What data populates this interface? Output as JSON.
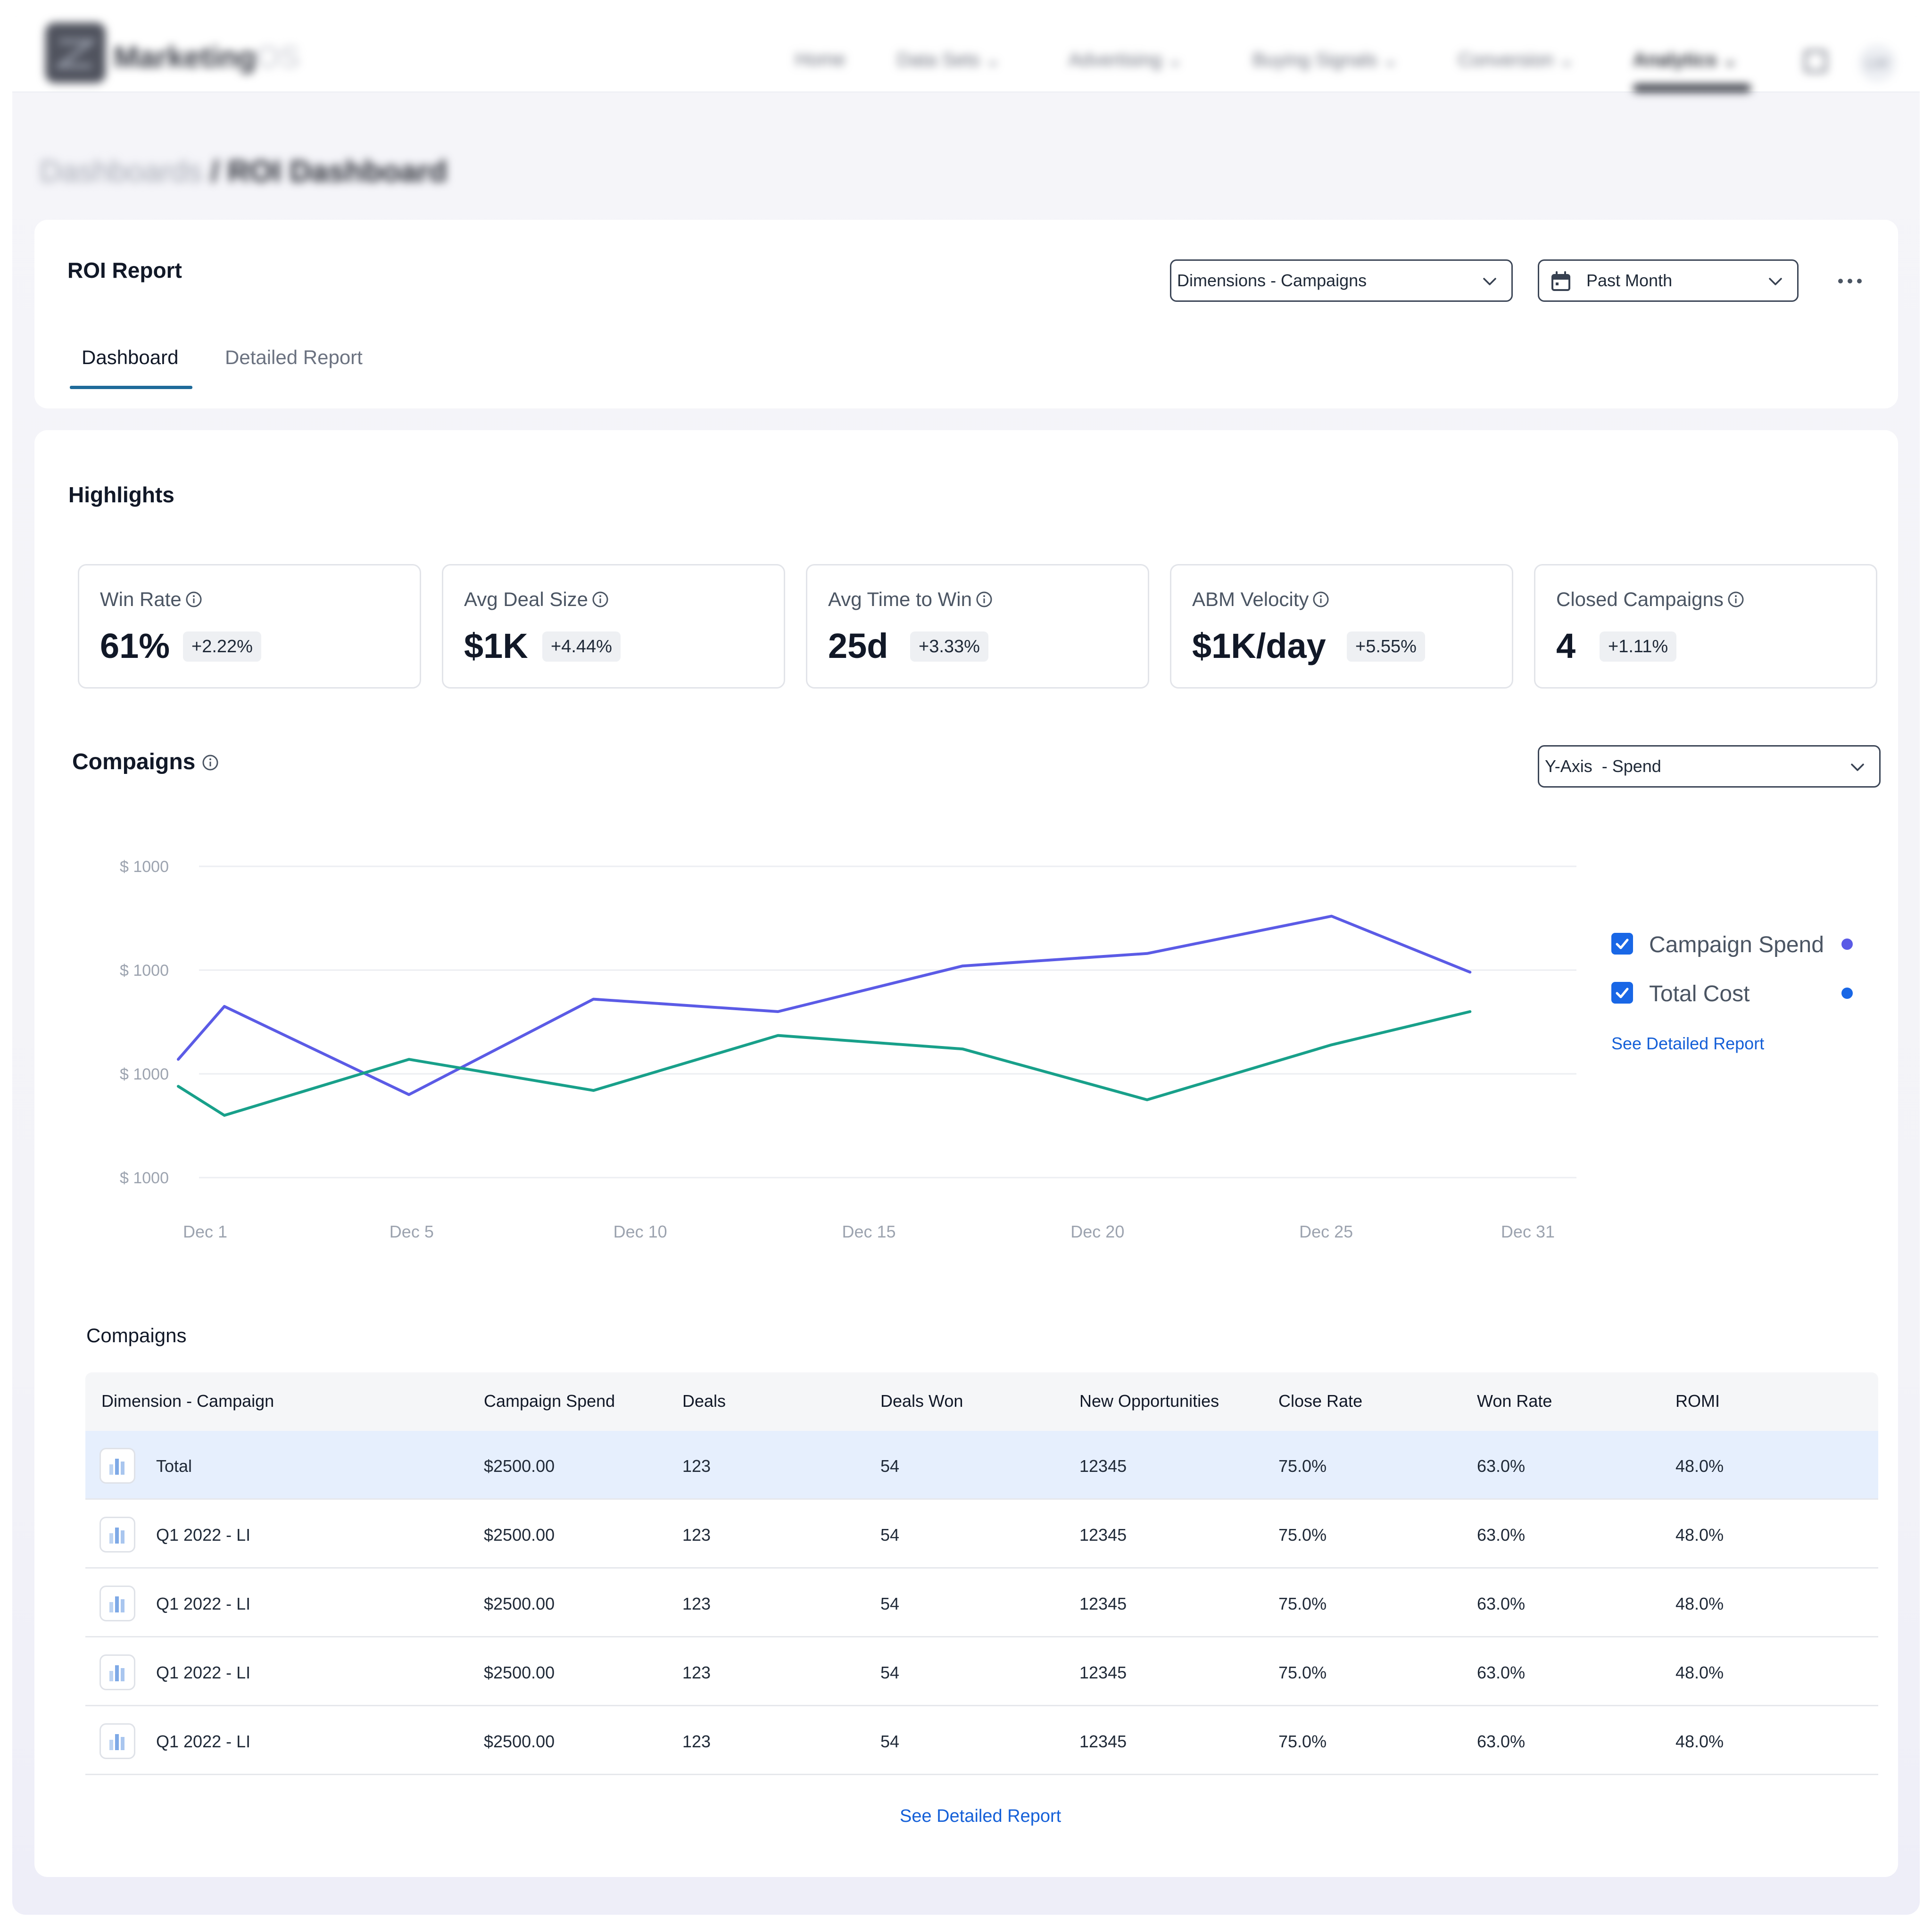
{
  "app": {
    "logo_text": "Marketing",
    "logo_suffix": "OS",
    "avatar_initials": "LW"
  },
  "nav": {
    "items": [
      {
        "label": "Home"
      },
      {
        "label": "Data Sets"
      },
      {
        "label": "Advertising"
      },
      {
        "label": "Buying Signals"
      },
      {
        "label": "Conversion"
      },
      {
        "label": "Analytics"
      }
    ],
    "active": "Analytics"
  },
  "breadcrumb": {
    "parent": "Dashboards",
    "separator": " / ",
    "current": "ROI Dashboard"
  },
  "report": {
    "title": "ROI Report",
    "dimension_select": "Dimensions - Campaigns",
    "date_select": "Past Month",
    "tabs": [
      {
        "label": "Dashboard",
        "active": true
      },
      {
        "label": "Detailed Report",
        "active": false
      }
    ]
  },
  "highlights": {
    "title": "Highlights",
    "kpis": [
      {
        "label": "Win Rate",
        "value": "61%",
        "delta": "+2.22%"
      },
      {
        "label": "Avg Deal Size",
        "value": "$1K",
        "delta": "+4.44%"
      },
      {
        "label": "Avg Time to Win",
        "value": "25d",
        "delta": "+3.33%"
      },
      {
        "label": "ABM Velocity",
        "value": "$1K/day",
        "delta": "+5.55%"
      },
      {
        "label": "Closed Campaigns",
        "value": "4",
        "delta": "+1.11%"
      }
    ]
  },
  "chart_section": {
    "title": "Compaigns",
    "yaxis_select": "Y-Axis  - Spend",
    "see_detailed_report": "See Detailed Report"
  },
  "chart_data": {
    "type": "line",
    "y_tick_labels": [
      "$ 1000",
      "$ 1000",
      "$ 1000",
      "$ 1000"
    ],
    "x_tick_labels": [
      "Dec 1",
      "Dec 5",
      "Dec 10",
      "Dec 15",
      "Dec 20",
      "Dec 25",
      "Dec 31"
    ],
    "ylim": [
      0,
      3
    ],
    "grid": true,
    "legend_position": "right",
    "series": [
      {
        "name": "Campaign Spend",
        "color": "#5b5be6",
        "checked": true,
        "x": [
          1,
          2,
          6,
          10,
          14,
          18,
          22,
          26,
          29
        ],
        "values": [
          1.14,
          1.65,
          0.8,
          1.72,
          1.6,
          2.04,
          2.16,
          2.52,
          1.98
        ]
      },
      {
        "name": "Total Cost",
        "color": "#18a08a",
        "checked": true,
        "x": [
          1,
          2,
          6,
          10,
          14,
          18,
          22,
          26,
          29
        ],
        "values": [
          0.88,
          0.6,
          1.14,
          0.84,
          1.37,
          1.24,
          0.75,
          1.28,
          1.6
        ]
      }
    ]
  },
  "table": {
    "title": "Compaigns",
    "columns": [
      "Dimension - Campaign",
      "Campaign Spend",
      "Deals",
      "Deals Won",
      "New Opportunities",
      "Close Rate",
      "Won Rate",
      "ROMI"
    ],
    "rows": [
      [
        "Total",
        "$2500.00",
        "123",
        "54",
        "12345",
        "75.0%",
        "63.0%",
        "48.0%"
      ],
      [
        "Q1 2022 - LI",
        "$2500.00",
        "123",
        "54",
        "12345",
        "75.0%",
        "63.0%",
        "48.0%"
      ],
      [
        "Q1 2022 - LI",
        "$2500.00",
        "123",
        "54",
        "12345",
        "75.0%",
        "63.0%",
        "48.0%"
      ],
      [
        "Q1 2022 - LI",
        "$2500.00",
        "123",
        "54",
        "12345",
        "75.0%",
        "63.0%",
        "48.0%"
      ],
      [
        "Q1 2022 - LI",
        "$2500.00",
        "123",
        "54",
        "12345",
        "75.0%",
        "63.0%",
        "48.0%"
      ]
    ],
    "see_detailed_report": "See Detailed Report"
  },
  "colors": {
    "accent": "#1560d8",
    "checkbox": "#1967e6",
    "tab_underline": "#1f6b9a",
    "total_row_bg": "#e6effd"
  }
}
